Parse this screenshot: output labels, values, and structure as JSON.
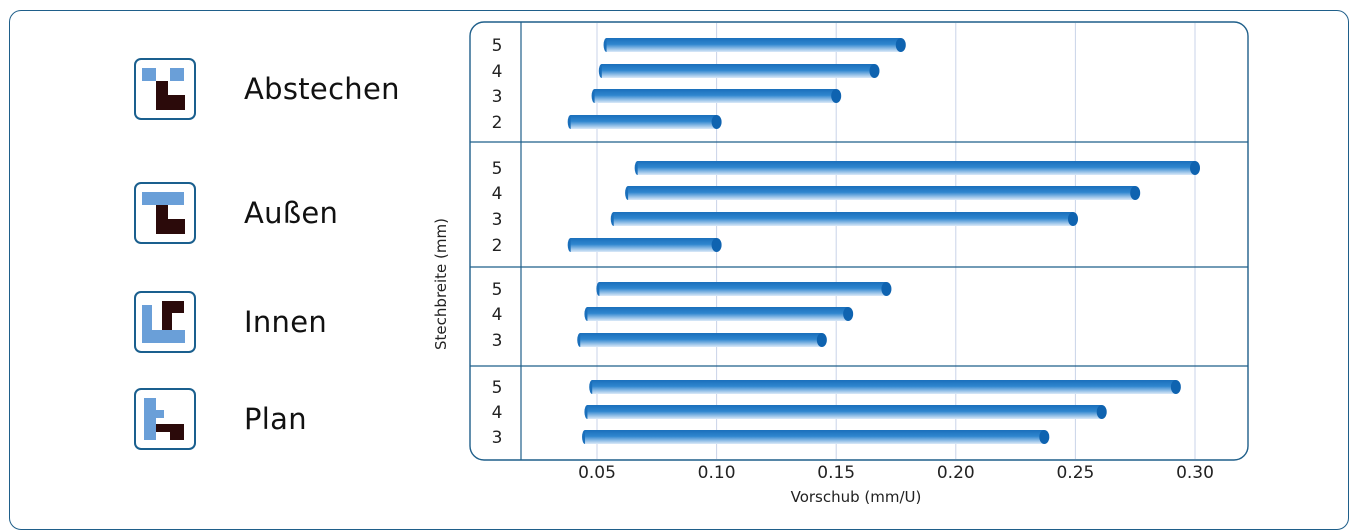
{
  "legend": [
    {
      "label": "Abstechen",
      "icon": "abstechen-icon"
    },
    {
      "label": "Außen",
      "icon": "aussen-icon"
    },
    {
      "label": "Innen",
      "icon": "innen-icon"
    },
    {
      "label": "Plan",
      "icon": "plan-icon"
    }
  ],
  "colors": {
    "light_blue": "#6a9fd8",
    "dark_maroon": "#2b0a0a",
    "bar_blue": "#1f74bf",
    "frame": "#1f5f8a",
    "grid": "#c9d3e8"
  },
  "chart_data": {
    "type": "bar",
    "orientation": "horizontal-range",
    "xlabel": "Vorschub (mm/U)",
    "ylabel": "Stechbreite (mm)",
    "xlim": [
      0.02,
      0.32
    ],
    "xticks": [
      "0.05",
      "0.10",
      "0.15",
      "0.20",
      "0.25",
      "0.30"
    ],
    "groups": [
      {
        "name": "Abstechen",
        "bars": [
          {
            "category": "5",
            "start": 0.054,
            "end": 0.177
          },
          {
            "category": "4",
            "start": 0.052,
            "end": 0.166
          },
          {
            "category": "3",
            "start": 0.049,
            "end": 0.15
          },
          {
            "category": "2",
            "start": 0.039,
            "end": 0.1
          }
        ]
      },
      {
        "name": "Außen",
        "bars": [
          {
            "category": "5",
            "start": 0.067,
            "end": 0.3
          },
          {
            "category": "4",
            "start": 0.063,
            "end": 0.275
          },
          {
            "category": "3",
            "start": 0.057,
            "end": 0.249
          },
          {
            "category": "2",
            "start": 0.039,
            "end": 0.1
          }
        ]
      },
      {
        "name": "Innen",
        "bars": [
          {
            "category": "5",
            "start": 0.051,
            "end": 0.171
          },
          {
            "category": "4",
            "start": 0.046,
            "end": 0.155
          },
          {
            "category": "3",
            "start": 0.043,
            "end": 0.144
          }
        ]
      },
      {
        "name": "Plan",
        "bars": [
          {
            "category": "5",
            "start": 0.048,
            "end": 0.292
          },
          {
            "category": "4",
            "start": 0.046,
            "end": 0.261
          },
          {
            "category": "3",
            "start": 0.045,
            "end": 0.237
          }
        ]
      }
    ]
  }
}
